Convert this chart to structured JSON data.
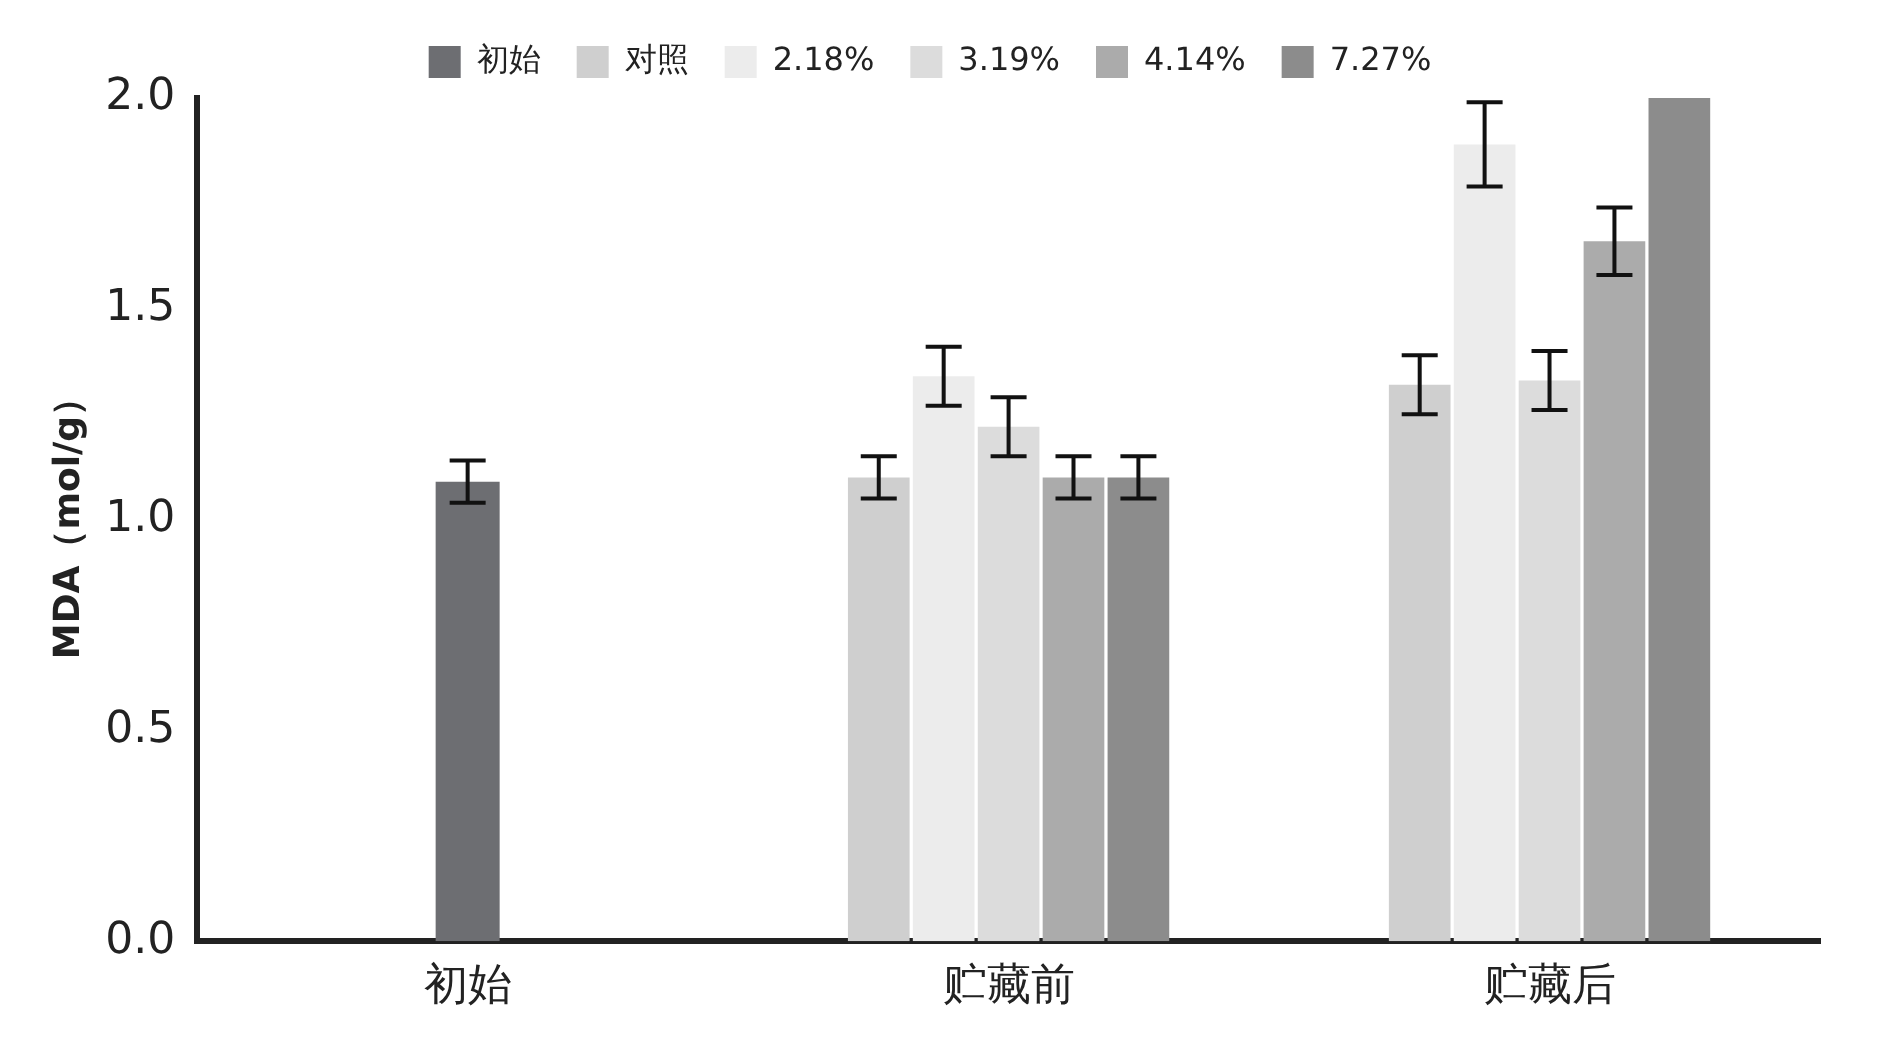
{
  "chart_data": {
    "type": "bar",
    "ylabel": "MDA（mol/g）",
    "categories": [
      "初始",
      "贮藏前",
      "贮藏后"
    ],
    "series": [
      {
        "name": "初始",
        "color": "#6d6e72",
        "values": [
          1.09,
          null,
          null
        ],
        "errors": [
          0.05,
          null,
          null
        ]
      },
      {
        "name": "对照",
        "color": "#cfcfcf",
        "values": [
          null,
          1.1,
          1.32
        ],
        "errors": [
          null,
          0.05,
          0.07
        ]
      },
      {
        "name": "2.18%",
        "color": "#ececec",
        "values": [
          null,
          1.34,
          1.89
        ],
        "errors": [
          null,
          0.07,
          0.1
        ]
      },
      {
        "name": "3.19%",
        "color": "#dcdcdc",
        "values": [
          null,
          1.22,
          1.33
        ],
        "errors": [
          null,
          0.07,
          0.07
        ]
      },
      {
        "name": "4.14%",
        "color": "#ababab",
        "values": [
          null,
          1.1,
          1.66
        ],
        "errors": [
          null,
          0.05,
          0.08
        ]
      },
      {
        "name": "7.27%",
        "color": "#8c8c8c",
        "values": [
          null,
          1.1,
          2.0
        ],
        "errors": [
          null,
          0.05,
          null
        ]
      }
    ],
    "ylim": [
      0,
      2
    ],
    "yticks": [
      {
        "value": 0,
        "label": "0.0"
      },
      {
        "value": 0.5,
        "label": "0.5"
      },
      {
        "value": 1,
        "label": "1.0"
      },
      {
        "value": 1.5,
        "label": "1.5"
      },
      {
        "value": 2,
        "label": "2.0"
      }
    ],
    "grid": false,
    "legend": "top"
  }
}
